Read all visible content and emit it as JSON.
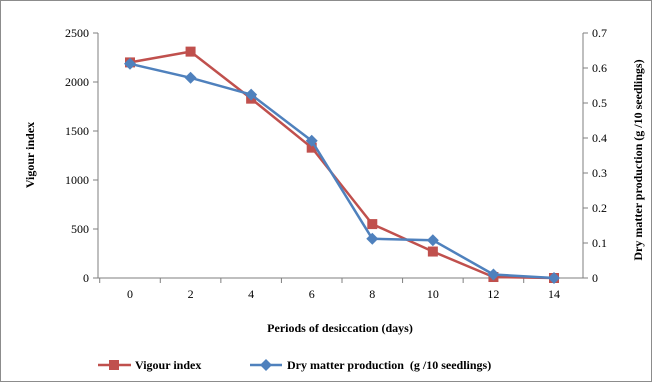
{
  "chart_data": {
    "type": "line",
    "x": [
      0,
      2,
      4,
      6,
      8,
      10,
      12,
      14
    ],
    "xlabel": "Periods of desiccation (days)",
    "ylabel": "Vigour index",
    "y2label": "Dry matter production (g /10 seedlings)",
    "ylim": [
      0,
      2500
    ],
    "y2lim": [
      0,
      0.7
    ],
    "yticks": [
      "0",
      "500",
      "1000",
      "1500",
      "2000",
      "2500"
    ],
    "y2ticks": [
      "0",
      "0.1",
      "0.2",
      "0.3",
      "0.4",
      "0.5",
      "0.6",
      "0.7"
    ],
    "xticks": [
      "0",
      "2",
      "4",
      "6",
      "8",
      "10",
      "12",
      "14"
    ],
    "grid": false,
    "legend_position": "bottom",
    "series": [
      {
        "name": "Vigour index",
        "axis": "left",
        "color": "#c0504d",
        "marker": "square",
        "values": [
          2200,
          2310,
          1830,
          1330,
          550,
          270,
          10,
          0
        ]
      },
      {
        "name": "Dry matter production  (g /10 seedlings)",
        "axis": "right",
        "color": "#4f81bd",
        "marker": "diamond",
        "values": [
          0.612,
          0.572,
          0.524,
          0.392,
          0.112,
          0.108,
          0.01,
          0.0
        ]
      }
    ]
  }
}
